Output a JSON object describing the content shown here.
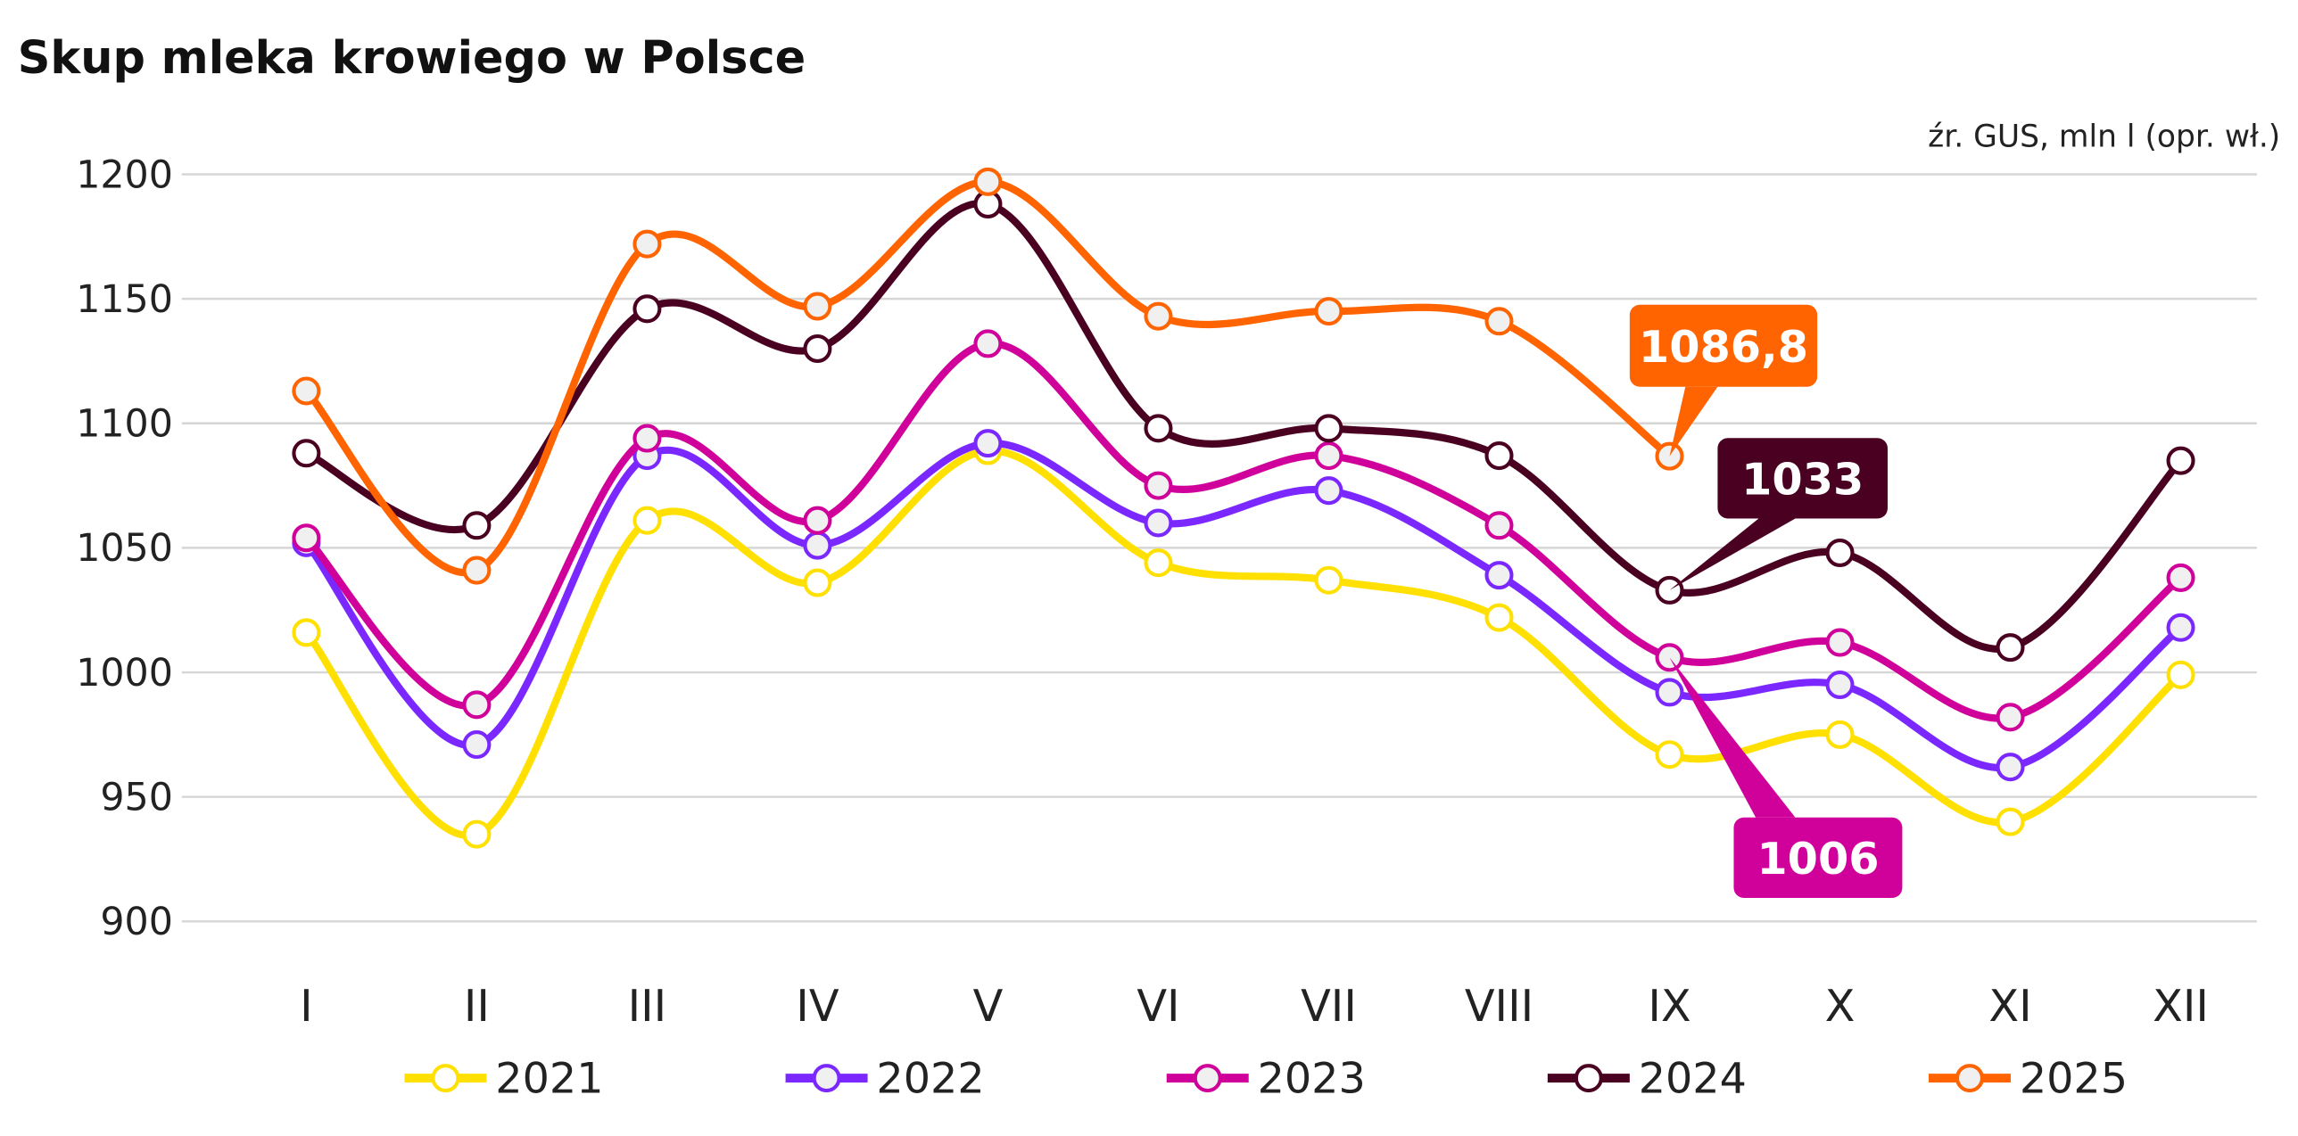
{
  "chart_data": {
    "type": "line",
    "title": "Skup mleka krowiego w Polsce",
    "source_note": "źr. GUS, mln l (opr. wł.)",
    "categories": [
      "I",
      "II",
      "III",
      "IV",
      "V",
      "VI",
      "VII",
      "VIII",
      "IX",
      "X",
      "XI",
      "XII"
    ],
    "ylim": [
      900,
      1200
    ],
    "yticks": [
      900,
      950,
      1000,
      1050,
      1100,
      1150,
      1200
    ],
    "grid": true,
    "legend_position": "bottom",
    "series": [
      {
        "name": "2021",
        "color": "#FFE000",
        "marker_fill": "#FFFFFF",
        "values": [
          1016,
          935,
          1061,
          1036,
          1089,
          1044,
          1037,
          1022,
          967,
          975,
          940,
          999
        ]
      },
      {
        "name": "2022",
        "color": "#7A28FF",
        "marker_fill": "#F0F0F0",
        "values": [
          1052,
          971,
          1087,
          1051,
          1092,
          1060,
          1073,
          1039,
          992,
          995,
          962,
          1018
        ]
      },
      {
        "name": "2023",
        "color": "#D0009A",
        "marker_fill": "#F0F0F0",
        "values": [
          1054,
          987,
          1094,
          1061,
          1132,
          1075,
          1087,
          1059,
          1006,
          1012,
          982,
          1038
        ]
      },
      {
        "name": "2024",
        "color": "#4A0020",
        "marker_fill": "#FFFFFF",
        "values": [
          1088,
          1059,
          1146,
          1130,
          1188,
          1098,
          1098,
          1087,
          1033,
          1048,
          1010,
          1085
        ]
      },
      {
        "name": "2025",
        "color": "#FF6400",
        "marker_fill": "#F0F0F0",
        "values": [
          1113,
          1041,
          1172,
          1147,
          1197,
          1143,
          1145,
          1141,
          1086.8,
          null,
          null,
          null
        ]
      }
    ],
    "annotations": [
      {
        "text": "1086,8",
        "series": "2025",
        "category": "IX",
        "color": "#FF6400"
      },
      {
        "text": "1033",
        "series": "2024",
        "category": "IX",
        "color": "#4A0020"
      },
      {
        "text": "1006",
        "series": "2023",
        "category": "IX",
        "color": "#D0009A"
      }
    ]
  }
}
